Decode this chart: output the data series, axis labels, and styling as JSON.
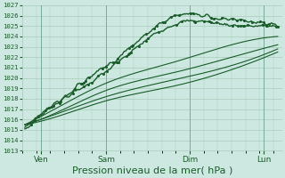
{
  "bg_color": "#cce8e0",
  "grid_color": "#aaccbb",
  "line_color": "#1a5c2a",
  "ylim": [
    1013,
    1027
  ],
  "yticks": [
    1013,
    1014,
    1015,
    1016,
    1017,
    1018,
    1019,
    1020,
    1021,
    1022,
    1023,
    1024,
    1025,
    1026
  ],
  "xlabel": "Pression niveau de la mer( hPa )",
  "xlabel_fontsize": 8,
  "xtick_labels": [
    "Ven",
    "Sam",
    "Dim",
    "Lun"
  ],
  "xtick_positions": [
    0.22,
    1.0,
    2.0,
    2.88
  ],
  "xlim": [
    0,
    3.1
  ]
}
